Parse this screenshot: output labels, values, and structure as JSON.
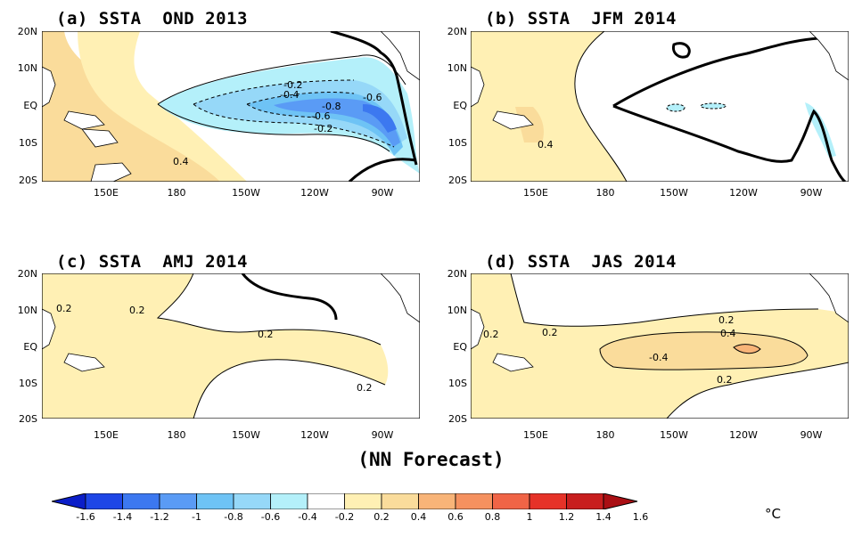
{
  "panels": [
    {
      "id": "a",
      "title": "(a) SSTA  OND 2013"
    },
    {
      "id": "b",
      "title": "(b) SSTA  JFM 2014"
    },
    {
      "id": "c",
      "title": "(c) SSTA  AMJ 2014"
    },
    {
      "id": "d",
      "title": "(d) SSTA  JAS 2014"
    }
  ],
  "lat_labels": [
    "20N",
    "10N",
    "EQ",
    "10S",
    "20S"
  ],
  "lon_labels": [
    "150E",
    "180",
    "150W",
    "120W",
    "90W"
  ],
  "subtitle": "(NN Forecast)",
  "colorbar": {
    "unit": "°C",
    "tick_labels": [
      "-1.6",
      "-1.4",
      "-1.2",
      "-1",
      "-0.8",
      "-0.6",
      "-0.4",
      "-0.2",
      "0.2",
      "0.4",
      "0.6",
      "0.8",
      "1",
      "1.2",
      "1.4",
      "1.6"
    ],
    "colors": [
      "#0b1ec8",
      "#1e46e6",
      "#3c78f0",
      "#5a9bf5",
      "#6ec3f5",
      "#96d8f8",
      "#b4f0fa",
      "#ffffff",
      "#fff0b4",
      "#fadc9b",
      "#f8b478",
      "#f5915f",
      "#f06446",
      "#e63228",
      "#c81e1e",
      "#aa0f14"
    ]
  },
  "contour_labels": {
    "a": [
      "-0.2",
      "-0.4",
      "-0.8",
      "-0.6",
      "-0.6",
      "-0.2",
      "0.4"
    ],
    "b": [
      "0.4"
    ],
    "c": [
      "0.2",
      "0.2",
      "0.2",
      "0.2"
    ],
    "d": [
      "0.2",
      "0.2",
      "0.2",
      "0.4",
      "-0.4",
      "0.2"
    ]
  }
}
